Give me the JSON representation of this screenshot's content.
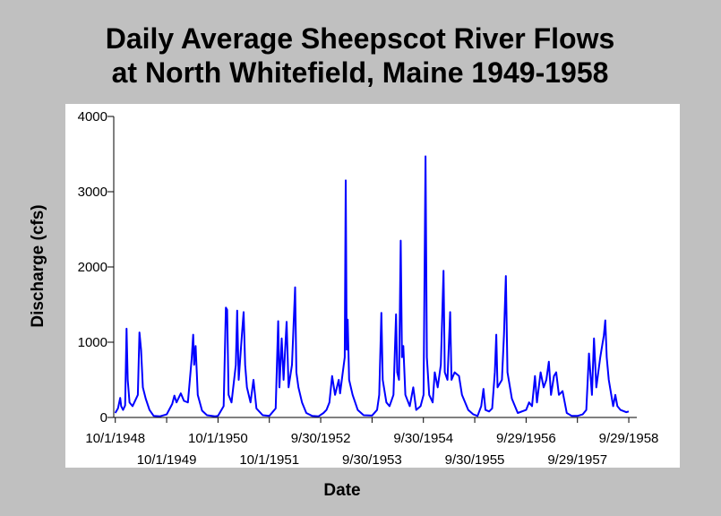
{
  "chart_data": {
    "type": "line",
    "title_lines": [
      "Daily Average Sheepscot River Flows",
      "at North Whitefield, Maine 1949-1958"
    ],
    "xlabel": "Date",
    "ylabel": "Discharge (cfs)",
    "ylim": [
      0,
      4000
    ],
    "y_ticks": [
      0,
      1000,
      2000,
      3000,
      4000
    ],
    "xlim": [
      "1948-09-20",
      "1958-11-25"
    ],
    "x_tick_labels": [
      {
        "label": "10/1/1948",
        "date": "1948-10-01",
        "row": 1
      },
      {
        "label": "10/1/1949",
        "date": "1949-10-01",
        "row": 2
      },
      {
        "label": "10/1/1950",
        "date": "1950-10-01",
        "row": 1
      },
      {
        "label": "10/1/1951",
        "date": "1951-10-01",
        "row": 2
      },
      {
        "label": "9/30/1952",
        "date": "1952-09-30",
        "row": 1
      },
      {
        "label": "9/30/1953",
        "date": "1953-09-30",
        "row": 2
      },
      {
        "label": "9/30/1954",
        "date": "1954-09-30",
        "row": 1
      },
      {
        "label": "9/30/1955",
        "date": "1955-09-30",
        "row": 2
      },
      {
        "label": "9/29/1956",
        "date": "1956-09-29",
        "row": 1
      },
      {
        "label": "9/29/1957",
        "date": "1957-09-29",
        "row": 2
      },
      {
        "label": "9/29/1958",
        "date": "1958-09-29",
        "row": 1
      }
    ],
    "grid": false,
    "line_color": "#0000ff",
    "series": [
      {
        "points": [
          [
            "1948-10-01",
            60
          ],
          [
            "1948-10-20",
            120
          ],
          [
            "1948-11-05",
            260
          ],
          [
            "1948-11-12",
            150
          ],
          [
            "1948-11-25",
            100
          ],
          [
            "1948-12-10",
            160
          ],
          [
            "1948-12-20",
            1180
          ],
          [
            "1948-12-28",
            500
          ],
          [
            "1949-01-10",
            200
          ],
          [
            "1949-02-01",
            150
          ],
          [
            "1949-03-10",
            300
          ],
          [
            "1949-03-22",
            1130
          ],
          [
            "1949-04-02",
            900
          ],
          [
            "1949-04-15",
            400
          ],
          [
            "1949-05-05",
            250
          ],
          [
            "1949-06-01",
            100
          ],
          [
            "1949-07-01",
            20
          ],
          [
            "1949-08-15",
            15
          ],
          [
            "1949-10-01",
            40
          ],
          [
            "1949-11-10",
            180
          ],
          [
            "1949-11-25",
            290
          ],
          [
            "1949-12-10",
            200
          ],
          [
            "1950-01-10",
            320
          ],
          [
            "1950-02-01",
            220
          ],
          [
            "1950-03-01",
            200
          ],
          [
            "1950-03-28",
            780
          ],
          [
            "1950-04-08",
            1100
          ],
          [
            "1950-04-15",
            700
          ],
          [
            "1950-04-25",
            950
          ],
          [
            "1950-05-10",
            300
          ],
          [
            "1950-06-10",
            90
          ],
          [
            "1950-07-15",
            30
          ],
          [
            "1950-09-10",
            15
          ],
          [
            "1950-10-01",
            20
          ],
          [
            "1950-11-10",
            150
          ],
          [
            "1950-11-26",
            1460
          ],
          [
            "1950-12-05",
            1430
          ],
          [
            "1950-12-15",
            300
          ],
          [
            "1951-01-05",
            200
          ],
          [
            "1951-02-05",
            700
          ],
          [
            "1951-02-14",
            1420
          ],
          [
            "1951-02-25",
            500
          ],
          [
            "1951-03-20",
            1100
          ],
          [
            "1951-04-01",
            1400
          ],
          [
            "1951-04-12",
            700
          ],
          [
            "1951-04-25",
            400
          ],
          [
            "1951-05-20",
            200
          ],
          [
            "1951-06-10",
            500
          ],
          [
            "1951-07-01",
            120
          ],
          [
            "1951-08-15",
            30
          ],
          [
            "1951-10-01",
            20
          ],
          [
            "1951-11-15",
            120
          ],
          [
            "1951-12-03",
            1280
          ],
          [
            "1951-12-12",
            400
          ],
          [
            "1951-12-28",
            1050
          ],
          [
            "1952-01-10",
            500
          ],
          [
            "1952-02-01",
            1270
          ],
          [
            "1952-02-15",
            400
          ],
          [
            "1952-03-10",
            700
          ],
          [
            "1952-04-01",
            1730
          ],
          [
            "1952-04-10",
            600
          ],
          [
            "1952-04-25",
            400
          ],
          [
            "1952-05-20",
            200
          ],
          [
            "1952-06-20",
            60
          ],
          [
            "1952-08-01",
            20
          ],
          [
            "1952-09-15",
            15
          ],
          [
            "1952-10-20",
            60
          ],
          [
            "1952-11-10",
            100
          ],
          [
            "1952-12-01",
            200
          ],
          [
            "1952-12-20",
            550
          ],
          [
            "1953-01-10",
            300
          ],
          [
            "1953-02-05",
            500
          ],
          [
            "1953-02-15",
            320
          ],
          [
            "1953-03-20",
            800
          ],
          [
            "1953-03-27",
            3150
          ],
          [
            "1953-04-03",
            900
          ],
          [
            "1953-04-10",
            1300
          ],
          [
            "1953-04-20",
            500
          ],
          [
            "1953-05-15",
            300
          ],
          [
            "1953-06-20",
            100
          ],
          [
            "1953-08-01",
            30
          ],
          [
            "1953-09-30",
            25
          ],
          [
            "1953-11-05",
            100
          ],
          [
            "1953-11-20",
            300
          ],
          [
            "1953-12-05",
            1390
          ],
          [
            "1953-12-15",
            500
          ],
          [
            "1954-01-10",
            200
          ],
          [
            "1954-02-01",
            150
          ],
          [
            "1954-03-01",
            300
          ],
          [
            "1954-03-20",
            1370
          ],
          [
            "1954-03-28",
            600
          ],
          [
            "1954-04-10",
            500
          ],
          [
            "1954-04-22",
            2350
          ],
          [
            "1954-05-01",
            800
          ],
          [
            "1954-05-10",
            950
          ],
          [
            "1954-05-25",
            300
          ],
          [
            "1954-06-25",
            150
          ],
          [
            "1954-07-20",
            400
          ],
          [
            "1954-08-10",
            100
          ],
          [
            "1954-09-10",
            150
          ],
          [
            "1954-10-01",
            300
          ],
          [
            "1954-10-15",
            3470
          ],
          [
            "1954-10-25",
            800
          ],
          [
            "1954-11-10",
            300
          ],
          [
            "1954-12-05",
            200
          ],
          [
            "1954-12-20",
            600
          ],
          [
            "1955-01-10",
            400
          ],
          [
            "1955-02-01",
            700
          ],
          [
            "1955-02-20",
            1950
          ],
          [
            "1955-03-01",
            600
          ],
          [
            "1955-03-20",
            500
          ],
          [
            "1955-04-08",
            1400
          ],
          [
            "1955-04-18",
            500
          ],
          [
            "1955-05-10",
            600
          ],
          [
            "1955-06-10",
            550
          ],
          [
            "1955-07-01",
            300
          ],
          [
            "1955-08-15",
            100
          ],
          [
            "1955-09-20",
            40
          ],
          [
            "1955-10-20",
            20
          ],
          [
            "1955-11-15",
            150
          ],
          [
            "1955-12-01",
            380
          ],
          [
            "1955-12-15",
            100
          ],
          [
            "1956-01-10",
            80
          ],
          [
            "1956-02-01",
            120
          ],
          [
            "1956-02-20",
            600
          ],
          [
            "1956-03-01",
            1100
          ],
          [
            "1956-03-10",
            400
          ],
          [
            "1956-04-10",
            500
          ],
          [
            "1956-04-25",
            1100
          ],
          [
            "1956-05-08",
            1880
          ],
          [
            "1956-05-20",
            600
          ],
          [
            "1956-06-20",
            250
          ],
          [
            "1956-08-01",
            60
          ],
          [
            "1956-09-29",
            100
          ],
          [
            "1956-10-20",
            200
          ],
          [
            "1956-11-10",
            150
          ],
          [
            "1956-12-01",
            550
          ],
          [
            "1956-12-15",
            200
          ],
          [
            "1957-01-10",
            600
          ],
          [
            "1957-02-01",
            400
          ],
          [
            "1957-02-20",
            500
          ],
          [
            "1957-03-10",
            740
          ],
          [
            "1957-03-25",
            300
          ],
          [
            "1957-04-15",
            550
          ],
          [
            "1957-05-01",
            600
          ],
          [
            "1957-05-20",
            300
          ],
          [
            "1957-06-15",
            350
          ],
          [
            "1957-07-15",
            60
          ],
          [
            "1957-08-20",
            20
          ],
          [
            "1957-09-29",
            20
          ],
          [
            "1957-11-05",
            40
          ],
          [
            "1957-12-01",
            100
          ],
          [
            "1957-12-20",
            850
          ],
          [
            "1958-01-10",
            300
          ],
          [
            "1958-01-25",
            1050
          ],
          [
            "1958-02-10",
            400
          ],
          [
            "1958-03-10",
            800
          ],
          [
            "1958-04-05",
            1090
          ],
          [
            "1958-04-15",
            1290
          ],
          [
            "1958-04-25",
            800
          ],
          [
            "1958-05-10",
            500
          ],
          [
            "1958-06-10",
            150
          ],
          [
            "1958-06-25",
            300
          ],
          [
            "1958-07-10",
            150
          ],
          [
            "1958-08-01",
            100
          ],
          [
            "1958-09-10",
            70
          ],
          [
            "1958-09-29",
            80
          ]
        ]
      }
    ]
  }
}
